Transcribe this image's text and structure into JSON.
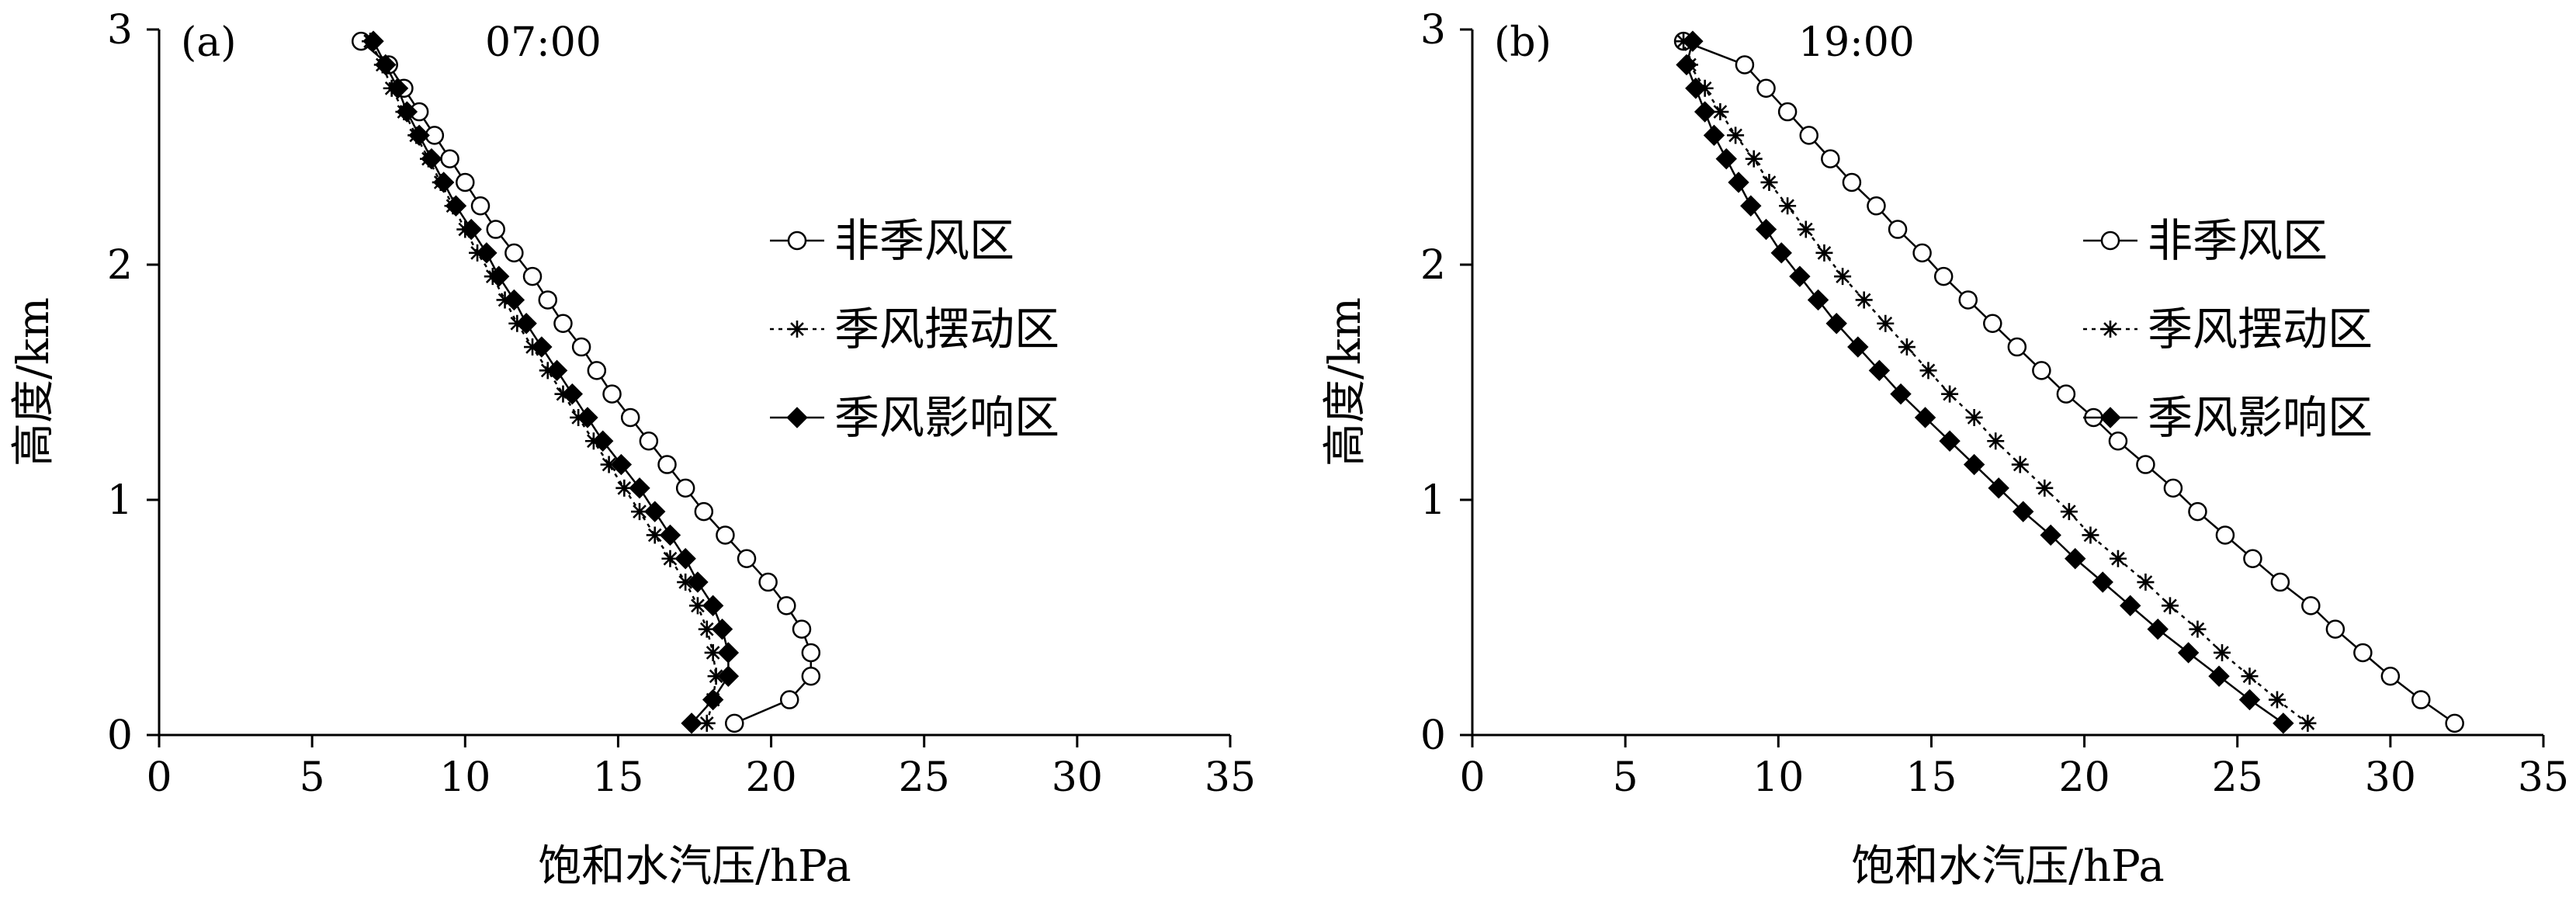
{
  "xlabel": "饱和水汽压/hPa",
  "ylabel": "高度/km",
  "legend": [
    "非季风区",
    "季风摆动区",
    "季风影响区"
  ],
  "chart_data": [
    {
      "type": "line",
      "panel_label": "(a)",
      "time_label": "07:00",
      "xlabel": "饱和水汽压/hPa",
      "ylabel": "高度/km",
      "xlim": [
        0,
        35
      ],
      "ylim": [
        0,
        3
      ],
      "xticks": [
        0,
        5,
        10,
        15,
        20,
        25,
        30,
        35
      ],
      "yticks": [
        0,
        1,
        2,
        3
      ],
      "legend_position": "right",
      "series": [
        {
          "name": "非季风区",
          "marker": "open-circle",
          "points": [
            [
              18.8,
              0.05
            ],
            [
              20.6,
              0.15
            ],
            [
              21.3,
              0.25
            ],
            [
              21.3,
              0.35
            ],
            [
              21.0,
              0.45
            ],
            [
              20.5,
              0.55
            ],
            [
              19.9,
              0.65
            ],
            [
              19.2,
              0.75
            ],
            [
              18.5,
              0.85
            ],
            [
              17.8,
              0.95
            ],
            [
              17.2,
              1.05
            ],
            [
              16.6,
              1.15
            ],
            [
              16.0,
              1.25
            ],
            [
              15.4,
              1.35
            ],
            [
              14.8,
              1.45
            ],
            [
              14.3,
              1.55
            ],
            [
              13.8,
              1.65
            ],
            [
              13.2,
              1.75
            ],
            [
              12.7,
              1.85
            ],
            [
              12.2,
              1.95
            ],
            [
              11.6,
              2.05
            ],
            [
              11.0,
              2.15
            ],
            [
              10.5,
              2.25
            ],
            [
              10.0,
              2.35
            ],
            [
              9.5,
              2.45
            ],
            [
              9.0,
              2.55
            ],
            [
              8.5,
              2.65
            ],
            [
              8.0,
              2.75
            ],
            [
              7.5,
              2.85
            ],
            [
              6.6,
              2.95
            ]
          ]
        },
        {
          "name": "季风摆动区",
          "marker": "asterisk",
          "points": [
            [
              17.9,
              0.05
            ],
            [
              18.1,
              0.15
            ],
            [
              18.2,
              0.25
            ],
            [
              18.1,
              0.35
            ],
            [
              17.9,
              0.45
            ],
            [
              17.6,
              0.55
            ],
            [
              17.2,
              0.65
            ],
            [
              16.7,
              0.75
            ],
            [
              16.2,
              0.85
            ],
            [
              15.7,
              0.95
            ],
            [
              15.2,
              1.05
            ],
            [
              14.7,
              1.15
            ],
            [
              14.2,
              1.25
            ],
            [
              13.7,
              1.35
            ],
            [
              13.2,
              1.45
            ],
            [
              12.7,
              1.55
            ],
            [
              12.2,
              1.65
            ],
            [
              11.7,
              1.75
            ],
            [
              11.3,
              1.85
            ],
            [
              10.9,
              1.95
            ],
            [
              10.4,
              2.05
            ],
            [
              10.0,
              2.15
            ],
            [
              9.6,
              2.25
            ],
            [
              9.2,
              2.35
            ],
            [
              8.8,
              2.45
            ],
            [
              8.4,
              2.55
            ],
            [
              8.0,
              2.65
            ],
            [
              7.6,
              2.75
            ],
            [
              7.3,
              2.85
            ],
            [
              6.9,
              2.95
            ]
          ]
        },
        {
          "name": "季风影响区",
          "marker": "filled-diamond",
          "points": [
            [
              17.4,
              0.05
            ],
            [
              18.1,
              0.15
            ],
            [
              18.6,
              0.25
            ],
            [
              18.6,
              0.35
            ],
            [
              18.4,
              0.45
            ],
            [
              18.1,
              0.55
            ],
            [
              17.6,
              0.65
            ],
            [
              17.2,
              0.75
            ],
            [
              16.7,
              0.85
            ],
            [
              16.2,
              0.95
            ],
            [
              15.7,
              1.05
            ],
            [
              15.1,
              1.15
            ],
            [
              14.5,
              1.25
            ],
            [
              14.0,
              1.35
            ],
            [
              13.5,
              1.45
            ],
            [
              13.0,
              1.55
            ],
            [
              12.5,
              1.65
            ],
            [
              12.0,
              1.75
            ],
            [
              11.6,
              1.85
            ],
            [
              11.1,
              1.95
            ],
            [
              10.7,
              2.05
            ],
            [
              10.2,
              2.15
            ],
            [
              9.7,
              2.25
            ],
            [
              9.3,
              2.35
            ],
            [
              8.9,
              2.45
            ],
            [
              8.5,
              2.55
            ],
            [
              8.1,
              2.65
            ],
            [
              7.8,
              2.75
            ],
            [
              7.4,
              2.85
            ],
            [
              7.0,
              2.95
            ]
          ]
        }
      ]
    },
    {
      "type": "line",
      "panel_label": "(b)",
      "time_label": "19:00",
      "xlabel": "饱和水汽压/hPa",
      "ylabel": "高度/km",
      "xlim": [
        0,
        35
      ],
      "ylim": [
        0,
        3
      ],
      "xticks": [
        0,
        5,
        10,
        15,
        20,
        25,
        30,
        35
      ],
      "yticks": [
        0,
        1,
        2,
        3
      ],
      "legend_position": "right",
      "series": [
        {
          "name": "非季风区",
          "marker": "open-circle",
          "points": [
            [
              32.1,
              0.05
            ],
            [
              31.0,
              0.15
            ],
            [
              30.0,
              0.25
            ],
            [
              29.1,
              0.35
            ],
            [
              28.2,
              0.45
            ],
            [
              27.4,
              0.55
            ],
            [
              26.4,
              0.65
            ],
            [
              25.5,
              0.75
            ],
            [
              24.6,
              0.85
            ],
            [
              23.7,
              0.95
            ],
            [
              22.9,
              1.05
            ],
            [
              22.0,
              1.15
            ],
            [
              21.1,
              1.25
            ],
            [
              20.3,
              1.35
            ],
            [
              19.4,
              1.45
            ],
            [
              18.6,
              1.55
            ],
            [
              17.8,
              1.65
            ],
            [
              17.0,
              1.75
            ],
            [
              16.2,
              1.85
            ],
            [
              15.4,
              1.95
            ],
            [
              14.7,
              2.05
            ],
            [
              13.9,
              2.15
            ],
            [
              13.2,
              2.25
            ],
            [
              12.4,
              2.35
            ],
            [
              11.7,
              2.45
            ],
            [
              11.0,
              2.55
            ],
            [
              10.3,
              2.65
            ],
            [
              9.6,
              2.75
            ],
            [
              8.9,
              2.85
            ],
            [
              6.9,
              2.95
            ]
          ]
        },
        {
          "name": "季风摆动区",
          "marker": "asterisk",
          "points": [
            [
              27.3,
              0.05
            ],
            [
              26.3,
              0.15
            ],
            [
              25.4,
              0.25
            ],
            [
              24.5,
              0.35
            ],
            [
              23.7,
              0.45
            ],
            [
              22.8,
              0.55
            ],
            [
              22.0,
              0.65
            ],
            [
              21.1,
              0.75
            ],
            [
              20.2,
              0.85
            ],
            [
              19.5,
              0.95
            ],
            [
              18.7,
              1.05
            ],
            [
              17.9,
              1.15
            ],
            [
              17.1,
              1.25
            ],
            [
              16.4,
              1.35
            ],
            [
              15.6,
              1.45
            ],
            [
              14.9,
              1.55
            ],
            [
              14.2,
              1.65
            ],
            [
              13.5,
              1.75
            ],
            [
              12.8,
              1.85
            ],
            [
              12.1,
              1.95
            ],
            [
              11.5,
              2.05
            ],
            [
              10.9,
              2.15
            ],
            [
              10.3,
              2.25
            ],
            [
              9.7,
              2.35
            ],
            [
              9.2,
              2.45
            ],
            [
              8.6,
              2.55
            ],
            [
              8.1,
              2.65
            ],
            [
              7.6,
              2.75
            ],
            [
              7.1,
              2.85
            ],
            [
              6.9,
              2.95
            ]
          ]
        },
        {
          "name": "季风影响区",
          "marker": "filled-diamond",
          "points": [
            [
              26.5,
              0.05
            ],
            [
              25.4,
              0.15
            ],
            [
              24.4,
              0.25
            ],
            [
              23.4,
              0.35
            ],
            [
              22.4,
              0.45
            ],
            [
              21.5,
              0.55
            ],
            [
              20.6,
              0.65
            ],
            [
              19.7,
              0.75
            ],
            [
              18.9,
              0.85
            ],
            [
              18.0,
              0.95
            ],
            [
              17.2,
              1.05
            ],
            [
              16.4,
              1.15
            ],
            [
              15.6,
              1.25
            ],
            [
              14.8,
              1.35
            ],
            [
              14.0,
              1.45
            ],
            [
              13.3,
              1.55
            ],
            [
              12.6,
              1.65
            ],
            [
              11.9,
              1.75
            ],
            [
              11.3,
              1.85
            ],
            [
              10.7,
              1.95
            ],
            [
              10.1,
              2.05
            ],
            [
              9.6,
              2.15
            ],
            [
              9.1,
              2.25
            ],
            [
              8.7,
              2.35
            ],
            [
              8.3,
              2.45
            ],
            [
              7.9,
              2.55
            ],
            [
              7.6,
              2.65
            ],
            [
              7.3,
              2.75
            ],
            [
              7.0,
              2.85
            ],
            [
              7.2,
              2.95
            ]
          ]
        }
      ]
    }
  ]
}
